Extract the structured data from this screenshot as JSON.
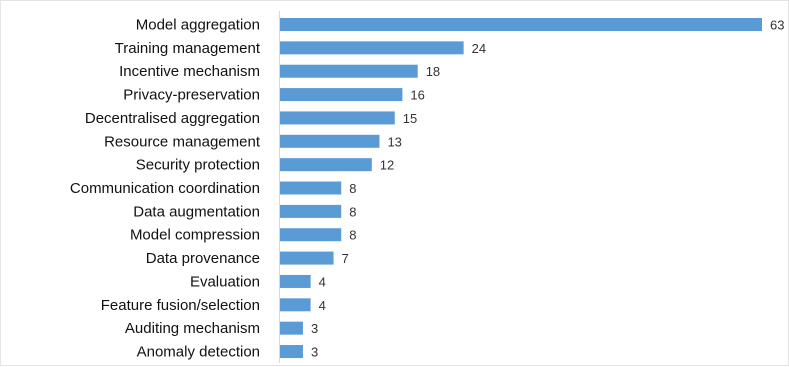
{
  "colors": {
    "bar": "#5b9bd5",
    "axis": "#d9d9d9",
    "text": "#111111"
  },
  "chart_data": {
    "type": "bar",
    "orientation": "horizontal",
    "title": "",
    "xlabel": "",
    "ylabel": "",
    "grid": false,
    "legend": "none",
    "xlim": [
      0,
      63
    ],
    "categories": [
      "Model aggregation",
      "Training management",
      "Incentive mechanism",
      "Privacy-preservation",
      "Decentralised aggregation",
      "Resource management",
      "Security protection",
      "Communication coordination",
      "Data augmentation",
      "Model compression",
      "Data provenance",
      "Evaluation",
      "Feature fusion/selection",
      "Auditing mechanism",
      "Anomaly detection"
    ],
    "values": [
      63,
      24,
      18,
      16,
      15,
      13,
      12,
      8,
      8,
      8,
      7,
      4,
      4,
      3,
      3
    ]
  }
}
